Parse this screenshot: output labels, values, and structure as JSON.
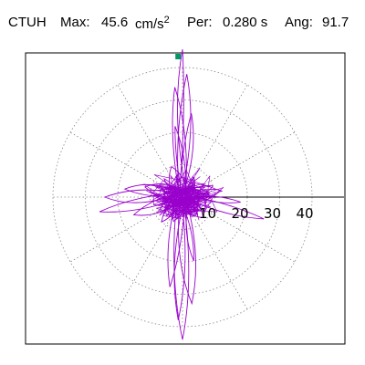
{
  "header": {
    "station": "CTUH",
    "max_label": "Max:",
    "max_value": "45.6",
    "max_unit": "cm/s",
    "max_unit_exp": "2",
    "per_label": "Per:",
    "per_value": "0.280 s",
    "ang_label": "Ang:",
    "ang_value": "91.7"
  },
  "colors": {
    "trace": "#9900cc",
    "grid": "#888888",
    "axis": "#000000",
    "marker": "#009966",
    "frame": "#000000"
  },
  "chart_data": {
    "type": "polar-hodogram",
    "grid": true,
    "grid_style": "dotted",
    "rings": [
      10,
      20,
      30,
      40
    ],
    "tick_labels": [
      "10",
      "20",
      "30",
      "40"
    ],
    "spokes_deg": [
      0,
      30,
      60,
      90,
      120,
      150,
      180,
      210,
      240,
      270,
      300,
      330
    ],
    "r_max": 40,
    "peak": {
      "value": 45.6,
      "angle_deg": 91.7
    },
    "lobes": [
      {
        "angle_deg": 90,
        "r": 45.6,
        "width": 2.5
      },
      {
        "angle_deg": 88,
        "r": 38,
        "width": 3.2
      },
      {
        "angle_deg": 94,
        "r": 34,
        "width": 3.0
      },
      {
        "angle_deg": 84,
        "r": 26,
        "width": 2.6
      },
      {
        "angle_deg": 96,
        "r": 22,
        "width": 2.4
      },
      {
        "angle_deg": 270,
        "r": 44,
        "width": 3.0
      },
      {
        "angle_deg": 268,
        "r": 38,
        "width": 2.6
      },
      {
        "angle_deg": 275,
        "r": 33,
        "width": 3.4
      },
      {
        "angle_deg": 262,
        "r": 28,
        "width": 2.8
      },
      {
        "angle_deg": 280,
        "r": 20,
        "width": 2.4
      },
      {
        "angle_deg": 180,
        "r": 24,
        "width": 3.2
      },
      {
        "angle_deg": 190,
        "r": 26,
        "width": 2.8
      },
      {
        "angle_deg": 172,
        "r": 18,
        "width": 3.4
      },
      {
        "angle_deg": 200,
        "r": 16,
        "width": 2.6
      },
      {
        "angle_deg": 345,
        "r": 26,
        "width": 2.8
      },
      {
        "angle_deg": 355,
        "r": 18,
        "width": 2.2
      },
      {
        "angle_deg": 10,
        "r": 12,
        "width": 2.6
      },
      {
        "angle_deg": 20,
        "r": 10,
        "width": 2.4
      },
      {
        "angle_deg": 165,
        "r": 12,
        "width": 3.0
      },
      {
        "angle_deg": 230,
        "r": 10,
        "width": 2.6
      },
      {
        "angle_deg": 315,
        "r": 9,
        "width": 2.4
      },
      {
        "angle_deg": 135,
        "r": 8,
        "width": 2.2
      },
      {
        "angle_deg": 60,
        "r": 7,
        "width": 2.0
      },
      {
        "angle_deg": 250,
        "r": 8,
        "width": 2.4
      },
      {
        "angle_deg": 110,
        "r": 10,
        "width": 2.6
      }
    ]
  }
}
